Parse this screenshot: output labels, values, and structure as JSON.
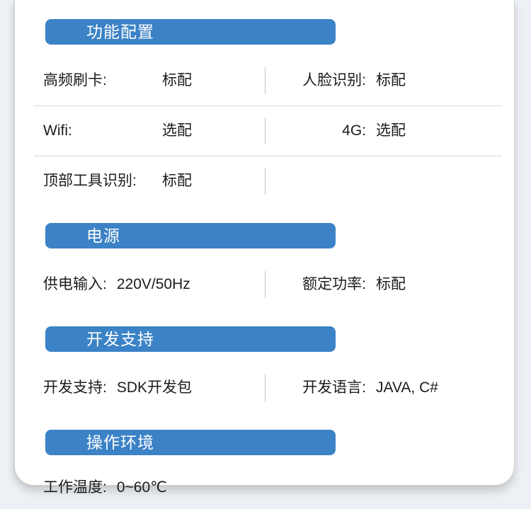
{
  "page": {
    "background_color": "#edf0f5",
    "card_color": "#ffffff",
    "accent_color": "#3b82c6",
    "text_color": "#1c1c1c"
  },
  "sections": [
    {
      "title": "功能配置",
      "rows": [
        {
          "left": {
            "label": "高频刷卡:",
            "value": "标配"
          },
          "right": {
            "label": "人脸识别:",
            "value": "标配"
          }
        },
        {
          "left": {
            "label": "Wifi:",
            "value": "选配"
          },
          "right": {
            "label": "4G:",
            "value": "选配"
          }
        },
        {
          "left": {
            "label": "顶部工具识别:",
            "value": "标配"
          },
          "right": null
        }
      ]
    },
    {
      "title": "电源",
      "rows": [
        {
          "left": {
            "label": "供电输入:",
            "value": "220V/50Hz"
          },
          "right": {
            "label": "额定功率:",
            "value": "标配"
          }
        }
      ]
    },
    {
      "title": "开发支持",
      "rows": [
        {
          "left": {
            "label": "开发支持:",
            "value": "SDK开发包"
          },
          "right": {
            "label": "开发语言:",
            "value": "JAVA, C#"
          }
        }
      ]
    },
    {
      "title": "操作环境",
      "rows": [
        {
          "left": {
            "label": "工作温度:",
            "value": "0~60℃"
          },
          "right": null
        }
      ]
    }
  ]
}
